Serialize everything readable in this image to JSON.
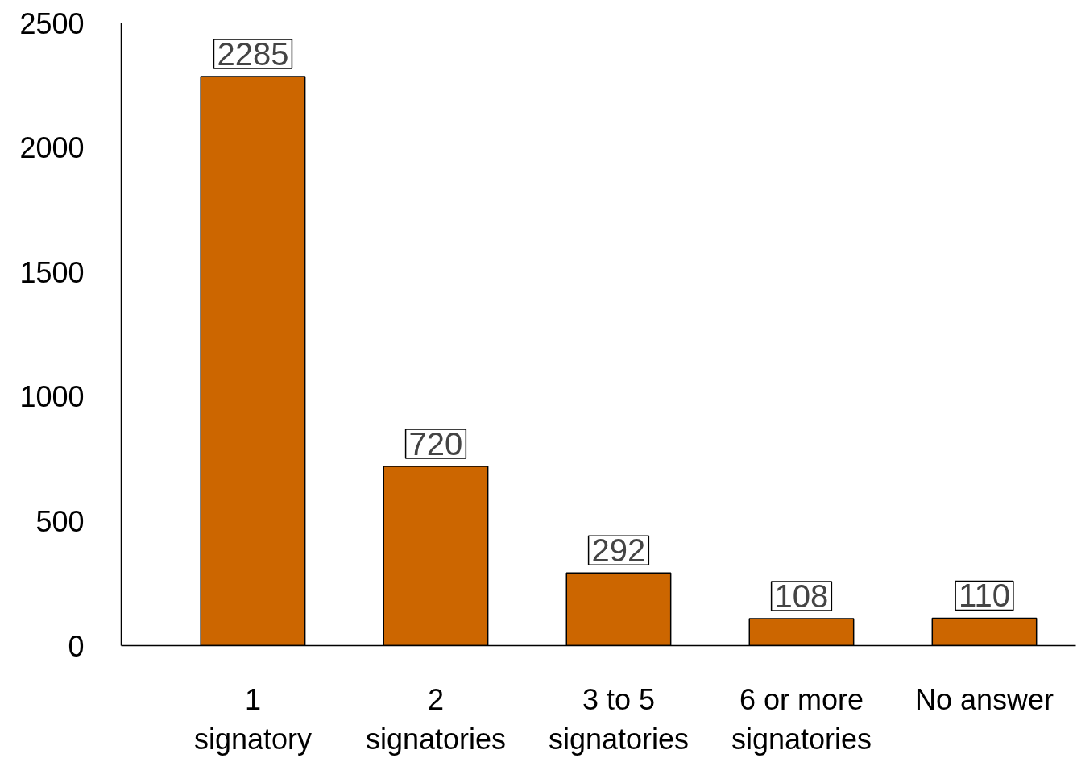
{
  "chart_data": {
    "type": "bar",
    "categories": [
      "1\nsignatory",
      "2\nsignatories",
      "3 to 5\nsignatories",
      "6 or more\nsignatories",
      "No answer"
    ],
    "values": [
      2285,
      720,
      292,
      108,
      110
    ],
    "color": "#cc6600",
    "ylim": [
      0,
      2500
    ],
    "yticks": [
      0,
      500,
      1000,
      1500,
      2000,
      2500
    ],
    "grid": false,
    "data_labels": true
  }
}
